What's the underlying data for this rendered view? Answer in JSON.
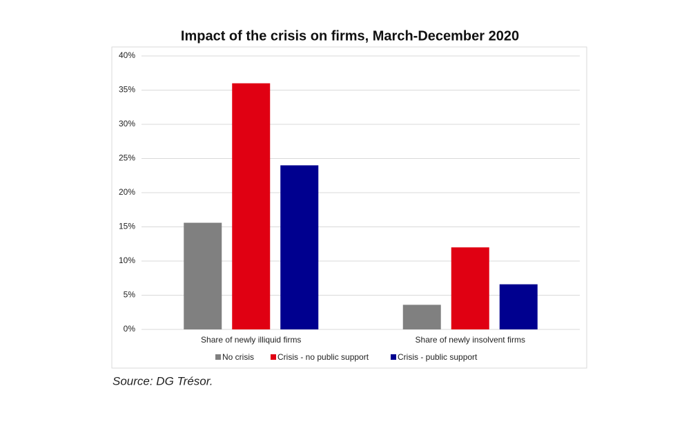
{
  "chart_data": {
    "type": "bar",
    "title": "Impact of the crisis on firms, March-December 2020",
    "categories": [
      "Share of newly illiquid firms",
      "Share of newly insolvent firms"
    ],
    "series": [
      {
        "name": "No crisis",
        "color": "#808080",
        "values": [
          15.6,
          3.6
        ]
      },
      {
        "name": "Crisis - no public support",
        "color": "#e00012",
        "values": [
          36,
          12
        ]
      },
      {
        "name": "Crisis - public support",
        "color": "#00008f",
        "values": [
          24,
          6.6
        ]
      }
    ],
    "ylim": [
      0,
      40
    ],
    "yticks": [
      {
        "value": 0,
        "label": "0%"
      },
      {
        "value": 5,
        "label": "5%"
      },
      {
        "value": 10,
        "label": "10%"
      },
      {
        "value": 15,
        "label": "15%"
      },
      {
        "value": 20,
        "label": "20%"
      },
      {
        "value": 25,
        "label": "25%"
      },
      {
        "value": 30,
        "label": "30%"
      },
      {
        "value": 35,
        "label": "35%"
      },
      {
        "value": 40,
        "label": "40%"
      }
    ],
    "grid": true,
    "legend": "bottom",
    "source": "Source: DG Trésor."
  }
}
